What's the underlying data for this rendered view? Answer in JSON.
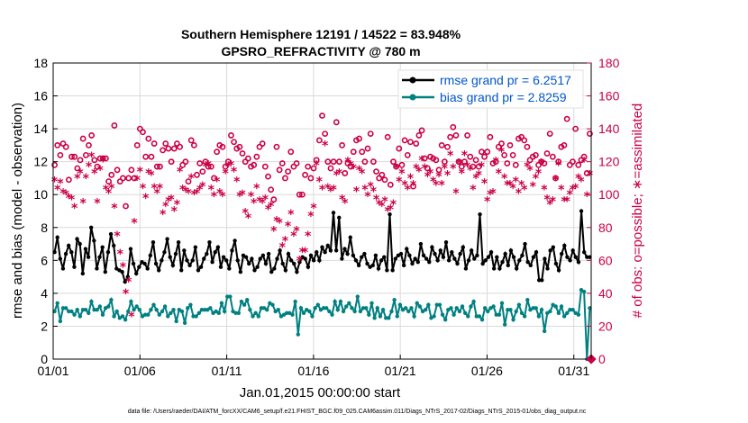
{
  "title_line1": "Southern Hemisphere 12191 / 14522 = 83.948%",
  "title_line2": "GPSRO_REFRACTIVITY @ 780 m",
  "ylabel_left": "rmse and bias (model - observation)",
  "ylabel_right": "# of obs: o=possible; ∗=assimilated",
  "xlabel": "Jan.01,2015 00:00:00 start",
  "footer": "data file: /Users/raeder/DAI/ATM_forcXX/CAM6_setup/f.e21.FHIST_BGC.f09_025.CAM6assim.011/Diags_NTrS_2017-02/Diags_NTrS_2015-01/obs_diag_output.nc",
  "legend": {
    "rmse": "rmse grand pr = 6.2517",
    "bias": "bias grand pr = 2.8259"
  },
  "colors": {
    "rmse": "#000000",
    "bias": "#008080",
    "obs": "#cc0044",
    "legend_text": "#0055cc"
  },
  "chart_data": {
    "type": "line",
    "x_label": "Jan.01,2015 00:00:00 start",
    "x_range_days": [
      1,
      32
    ],
    "x_ticks": [
      {
        "day": 1,
        "label": "01/01"
      },
      {
        "day": 6,
        "label": "01/06"
      },
      {
        "day": 11,
        "label": "01/11"
      },
      {
        "day": 16,
        "label": "01/16"
      },
      {
        "day": 21,
        "label": "01/21"
      },
      {
        "day": 26,
        "label": "01/26"
      },
      {
        "day": 31,
        "label": "01/31"
      }
    ],
    "y_left_range": [
      0,
      18
    ],
    "y_left_ticks": [
      0,
      2,
      4,
      6,
      8,
      10,
      12,
      14,
      16,
      18
    ],
    "y_right_range": [
      0,
      180
    ],
    "y_right_ticks": [
      0,
      20,
      40,
      60,
      80,
      100,
      120,
      140,
      160,
      180
    ],
    "grid": true,
    "legend_position": "top-right",
    "series": [
      {
        "name": "rmse grand pr = 6.2517",
        "axis": "left",
        "values": [
          6.5,
          7.4,
          6.1,
          5.5,
          6.4,
          6.9,
          6.5,
          5.6,
          7.3,
          7.0,
          5.2,
          6.7,
          6.2,
          8.0,
          7.2,
          5.5,
          6.2,
          6.8,
          5.3,
          6.5,
          7.6,
          6.9,
          5.5,
          5.4,
          5.3,
          4.7,
          5.0,
          6.7,
          5.8,
          5.2,
          5.6,
          5.9,
          5.8,
          5.5,
          6.3,
          7.1,
          5.8,
          5.4,
          6.0,
          6.5,
          7.3,
          6.2,
          5.7,
          6.4,
          7.1,
          5.4,
          6.6,
          6.0,
          5.7,
          6.0,
          6.8,
          5.4,
          5.6,
          6.1,
          6.4,
          7.1,
          5.9,
          6.5,
          6.8,
          5.6,
          6.2,
          6.0,
          5.5,
          6.6,
          7.2,
          6.0,
          5.3,
          6.3,
          6.2,
          5.8,
          6.1,
          5.4,
          5.6,
          6.1,
          6.3,
          5.8,
          6.4,
          5.3,
          5.5,
          6.1,
          6.6,
          5.8,
          5.4,
          6.4,
          6.0,
          5.8,
          5.3,
          5.9,
          6.2,
          6.1,
          5.6,
          6.3,
          6.0,
          6.5,
          6.0,
          6.8,
          6.5,
          6.9,
          6.6,
          8.9,
          6.6,
          8.6,
          6.1,
          6.7,
          6.4,
          7.4,
          6.3,
          6.0,
          5.7,
          6.2,
          6.4,
          5.8,
          5.6,
          5.7,
          6.3,
          5.5,
          6.0,
          6.2,
          5.4,
          8.8,
          5.4,
          6.1,
          6.3,
          6.4,
          5.7,
          6.7,
          6.3,
          5.8,
          6.1,
          5.9,
          7.0,
          6.3,
          6.1,
          5.9,
          6.8,
          6.4,
          6.0,
          6.6,
          6.2,
          7.1,
          6.0,
          6.5,
          6.1,
          5.8,
          6.4,
          6.8,
          5.5,
          6.0,
          6.6,
          6.1,
          6.3,
          8.8,
          5.8,
          6.0,
          6.2,
          6.5,
          5.5,
          6.2,
          5.5,
          5.9,
          6.4,
          5.7,
          6.6,
          6.2,
          5.5,
          6.0,
          6.3,
          7.0,
          5.9,
          5.7,
          6.2,
          6.5,
          4.8,
          4.8,
          6.1,
          5.5,
          6.6,
          6.8,
          5.8,
          5.4,
          6.4,
          6.9,
          6.2,
          6.0,
          6.6,
          6.2,
          5.9,
          9.0,
          6.5,
          6.2,
          6.2
        ]
      },
      {
        "name": "bias grand pr = 2.8259",
        "axis": "left",
        "values": [
          2.9,
          3.4,
          2.3,
          3.1,
          3.1,
          2.9,
          2.9,
          2.7,
          3.0,
          2.6,
          3.0,
          3.0,
          2.8,
          3.5,
          3.0,
          3.0,
          3.2,
          2.7,
          3.1,
          3.2,
          3.6,
          2.6,
          2.9,
          2.5,
          2.6,
          2.4,
          2.9,
          3.5,
          3.0,
          3.2,
          3.0,
          2.6,
          2.7,
          2.7,
          3.0,
          3.3,
          3.0,
          2.7,
          2.9,
          3.2,
          2.6,
          2.8,
          3.0,
          2.3,
          3.0,
          2.9,
          2.2,
          3.1,
          3.3,
          2.6,
          2.6,
          2.8,
          3.0,
          3.0,
          3.0,
          3.1,
          2.8,
          2.9,
          2.8,
          3.4,
          2.9,
          3.8,
          3.8,
          2.9,
          2.8,
          2.8,
          3.5,
          3.3,
          3.6,
          3.0,
          2.6,
          2.8,
          2.6,
          3.1,
          3.1,
          3.0,
          3.4,
          3.3,
          2.9,
          3.0,
          2.6,
          2.7,
          2.8,
          2.8,
          2.7,
          3.5,
          1.5,
          3.1,
          2.8,
          3.0,
          2.9,
          2.6,
          3.1,
          3.3,
          3.0,
          3.1,
          3.1,
          2.9,
          2.7,
          3.5,
          3.0,
          3.5,
          2.9,
          3.2,
          3.4,
          3.1,
          2.9,
          3.8,
          2.9,
          3.1,
          3.1,
          2.7,
          3.4,
          2.5,
          3.1,
          2.6,
          3.0,
          2.5,
          2.5,
          2.9,
          3.6,
          2.6,
          3.3,
          3.0,
          3.1,
          2.9,
          3.1,
          2.6,
          3.4,
          3.2,
          2.9,
          3.0,
          3.3,
          2.5,
          2.6,
          3.3,
          3.3,
          2.7,
          2.4,
          3.0,
          3.1,
          2.7,
          3.1,
          2.9,
          3.2,
          2.8,
          2.6,
          3.2,
          3.5,
          2.6,
          2.6,
          2.4,
          3.1,
          2.9,
          3.1,
          3.2,
          2.7,
          2.7,
          3.4,
          2.1,
          3.0,
          3.0,
          2.4,
          2.9,
          3.3,
          2.8,
          2.6,
          3.6,
          3.0,
          3.1,
          3.1,
          2.6,
          3.0,
          1.7,
          2.8,
          2.9,
          3.3,
          3.2,
          2.8,
          3.2,
          2.6,
          2.8,
          3.0,
          3.0,
          2.8,
          2.7,
          4.2,
          4.1,
          0.0,
          3.1
        ]
      },
      {
        "name": "possible",
        "axis": "right",
        "marker": "o",
        "values": [
          118,
          130,
          124,
          131,
          129,
          109,
          123,
          123,
          116,
          121,
          134,
          124,
          130,
          136,
          121,
          117,
          122,
          122,
          122,
          108,
          112,
          142,
          115,
          108,
          110,
          93,
          110,
          115,
          110,
          130,
          140,
          138,
          123,
          134,
          123,
          131,
          117,
          117,
          127,
          131,
          128,
          120,
          128,
          131,
          129,
          118,
          120,
          108,
          133,
          130,
          112,
          119,
          114,
          120,
          117,
          117,
          110,
          126,
          130,
          129,
          117,
          120,
          136,
          132,
          128,
          129,
          125,
          120,
          122,
          117,
          118,
          123,
          129,
          131,
          117,
          111,
          103,
          97,
          129,
          115,
          119,
          110,
          114,
          126,
          117,
          119,
          100,
          100,
          112,
          117,
          110,
          116,
          121,
          133,
          148,
          137,
          120,
          116,
          120,
          144,
          120,
          130,
          113,
          119,
          117,
          126,
          133,
          134,
          126,
          120,
          128,
          137,
          120,
          114,
          110,
          112,
          109,
          135,
          106,
          120,
          117,
          128,
          118,
          133,
          124,
          132,
          105,
          131,
          136,
          139,
          122,
          116,
          123,
          122,
          121,
          115,
          130,
          120,
          129,
          135,
          141,
          136,
          120,
          117,
          120,
          136,
          123,
          117,
          121,
          117,
          126,
          123,
          126,
          135,
          119,
          120,
          129,
          131,
          124,
          119,
          130,
          124,
          118,
          134,
          135,
          133,
          129,
          121,
          123,
          124,
          118,
          120,
          119,
          125,
          137,
          123,
          110,
          120,
          129,
          130,
          146,
          118,
          120,
          140,
          118,
          121,
          123,
          113,
          137
        ]
      },
      {
        "name": "assimilated",
        "axis": "right",
        "marker": "*",
        "values": [
          108,
          103,
          107,
          101,
          100,
          98,
          97,
          92,
          110,
          113,
          95,
          110,
          117,
          123,
          113,
          95,
          115,
          120,
          103,
          101,
          104,
          92,
          75,
          64,
          56,
          40,
          47,
          26,
          83,
          109,
          114,
          104,
          98,
          113,
          112,
          104,
          101,
          104,
          88,
          93,
          96,
          97,
          90,
          94,
          114,
          103,
          102,
          101,
          110,
          100,
          101,
          103,
          105,
          117,
          118,
          103,
          99,
          108,
          101,
          99,
          113,
          117,
          118,
          114,
          108,
          99,
          100,
          89,
          86,
          99,
          95,
          104,
          96,
          95,
          97,
          91,
          93,
          78,
          84,
          83,
          68,
          72,
          81,
          88,
          75,
          78,
          60,
          65,
          65,
          75,
          87,
          92,
          118,
          108,
          103,
          130,
          104,
          102,
          103,
          112,
          113,
          97,
          95,
          120,
          118,
          116,
          102,
          115,
          113,
          103,
          99,
          105,
          102,
          97,
          94,
          93,
          96,
          90,
          91,
          94,
          116,
          108,
          113,
          106,
          103,
          110,
          106,
          116,
          114,
          121,
          116,
          111,
          113,
          108,
          106,
          111,
          106,
          116,
          112,
          124,
          116,
          101,
          119,
          113,
          124,
          117,
          115,
          103,
          110,
          112,
          117,
          107,
          96,
          100,
          101,
          120,
          113,
          126,
          110,
          106,
          106,
          104,
          108,
          101,
          106,
          103,
          117,
          115,
          105,
          110,
          113,
          119,
          103,
          97,
          94,
          96,
          109,
          118,
          103,
          96,
          96,
          100,
          103,
          104,
          110,
          108,
          120,
          99,
          112
        ]
      }
    ]
  }
}
